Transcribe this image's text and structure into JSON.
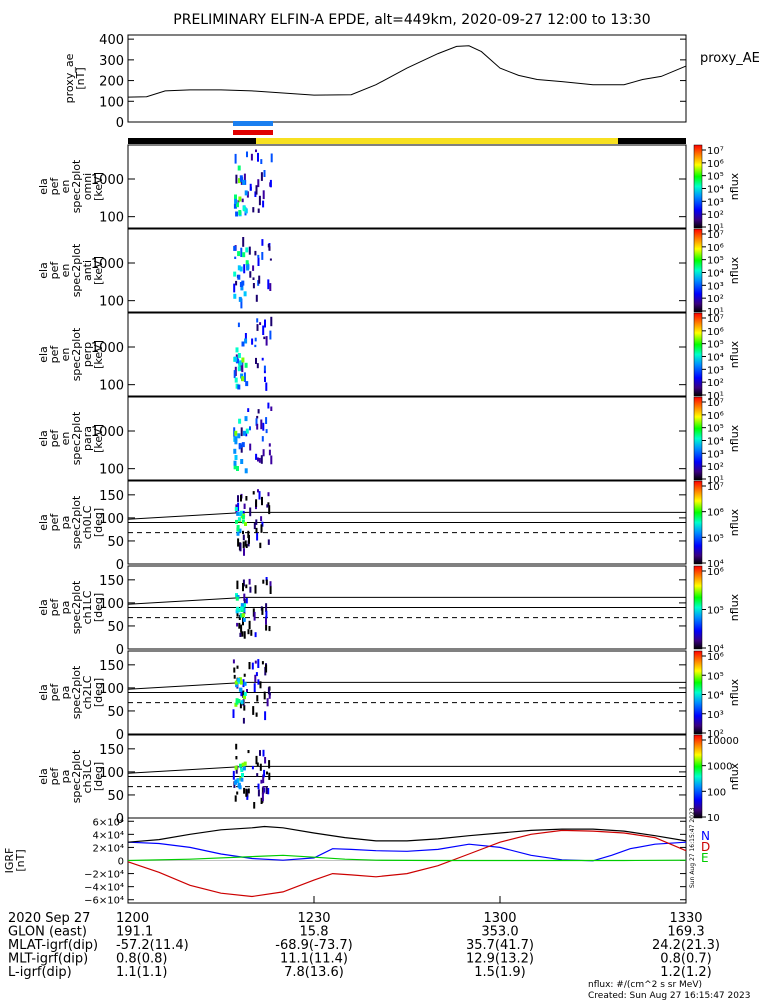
{
  "title": "PRELIMINARY ELFIN-A EPDE, alt=449km, 2020-09-27 12:00 to 13:30",
  "chart_data": [
    {
      "type": "line",
      "id": "proxy_ae",
      "ylabel": [
        "proxy_ae",
        "[nT]"
      ],
      "legend": "proxy_AE",
      "yticks": [
        "0",
        "100",
        "200",
        "300",
        "400"
      ],
      "ylim": [
        0,
        420
      ],
      "xlim": [
        0,
        90
      ],
      "x": [
        0,
        3,
        6,
        10,
        15,
        20,
        25,
        30,
        36,
        40,
        45,
        50,
        53,
        55,
        57,
        60,
        63,
        66,
        70,
        75,
        80,
        83,
        86,
        90
      ],
      "y": [
        120,
        122,
        150,
        155,
        155,
        150,
        140,
        130,
        132,
        180,
        260,
        330,
        365,
        368,
        340,
        260,
        225,
        205,
        195,
        180,
        180,
        205,
        220,
        270
      ]
    },
    {
      "type": "heatmap",
      "id": "spec_omni",
      "ylabel": [
        "ela",
        "pef",
        "en",
        "spec2plot",
        "omni",
        "[keV]"
      ],
      "yticks": [
        "100",
        "1000"
      ],
      "colorbar_label": "nflux",
      "colorbar_ticks": [
        "10¹",
        "10²",
        "10³",
        "10⁴",
        "10⁵",
        "10⁶",
        "10⁷"
      ]
    },
    {
      "type": "heatmap",
      "id": "spec_anti",
      "ylabel": [
        "ela",
        "pef",
        "en",
        "spec2plot",
        "anti",
        "[keV]"
      ],
      "yticks": [
        "100",
        "1000"
      ],
      "colorbar_label": "nflux",
      "colorbar_ticks": [
        "10¹",
        "10²",
        "10³",
        "10⁴",
        "10⁵",
        "10⁶",
        "10⁷"
      ]
    },
    {
      "type": "heatmap",
      "id": "spec_perp",
      "ylabel": [
        "ela",
        "pef",
        "en",
        "spec2plot",
        "perp",
        "[keV]"
      ],
      "yticks": [
        "100",
        "1000"
      ],
      "colorbar_label": "nflux",
      "colorbar_ticks": [
        "10¹",
        "10²",
        "10³",
        "10⁴",
        "10⁵",
        "10⁶",
        "10⁷"
      ]
    },
    {
      "type": "heatmap",
      "id": "spec_para",
      "ylabel": [
        "ela",
        "pef",
        "en",
        "spec2plot",
        "para",
        "[keV]"
      ],
      "yticks": [
        "100",
        "1000"
      ],
      "colorbar_label": "nflux",
      "colorbar_ticks": [
        "10¹",
        "10²",
        "10³",
        "10⁴",
        "10⁵",
        "10⁶",
        "10⁷"
      ]
    },
    {
      "type": "heatmap",
      "id": "pa_ch0",
      "ylabel": [
        "ela",
        "pef",
        "pa",
        "spec2plot",
        "ch0LC",
        "[deg]"
      ],
      "yticks": [
        "0",
        "50",
        "100",
        "150"
      ],
      "colorbar_label": "nflux",
      "colorbar_ticks": [
        "10⁴",
        "10⁵",
        "10⁶",
        "10⁷"
      ]
    },
    {
      "type": "heatmap",
      "id": "pa_ch1",
      "ylabel": [
        "ela",
        "pef",
        "pa",
        "spec2plot",
        "ch1LC",
        "[deg]"
      ],
      "yticks": [
        "0",
        "50",
        "100",
        "150"
      ],
      "colorbar_label": "nflux",
      "colorbar_ticks": [
        "10⁴",
        "10⁵",
        "10⁶"
      ]
    },
    {
      "type": "heatmap",
      "id": "pa_ch2",
      "ylabel": [
        "ela",
        "pef",
        "pa",
        "spec2plot",
        "ch2LC",
        "[deg]"
      ],
      "yticks": [
        "0",
        "50",
        "100",
        "150"
      ],
      "colorbar_label": "nflux",
      "colorbar_ticks": [
        "10²",
        "10³",
        "10⁴",
        "10⁵",
        "10⁶"
      ]
    },
    {
      "type": "heatmap",
      "id": "pa_ch3",
      "ylabel": [
        "ela",
        "pef",
        "pa",
        "spec2plot",
        "ch3LC",
        "[deg]"
      ],
      "yticks": [
        "0",
        "50",
        "100",
        "150"
      ],
      "colorbar_label": "nflux",
      "colorbar_ticks": [
        "10",
        "100",
        "1000",
        "10000"
      ]
    },
    {
      "type": "line",
      "id": "igrf",
      "ylabel": [
        "IGRF",
        "[nT]"
      ],
      "yticks": [
        "−6×10⁴",
        "−4×10⁴",
        "−2×10⁴",
        "0",
        "2×10⁴",
        "4×10⁴",
        "6×10⁴"
      ],
      "ylim": [
        -65000,
        65000
      ],
      "xlim": [
        0,
        90
      ],
      "legend": [
        "N",
        "D",
        "E"
      ],
      "annotation": "Sun Aug 27 16:15:47 2023",
      "series": [
        {
          "name": "N",
          "color": "#0000ff",
          "x": [
            0,
            5,
            10,
            15,
            20,
            25,
            30,
            33,
            36,
            40,
            45,
            50,
            55,
            60,
            65,
            70,
            75,
            78,
            81,
            85,
            90
          ],
          "y": [
            28000,
            26000,
            20000,
            10000,
            3000,
            500,
            4000,
            18000,
            17000,
            15000,
            14000,
            17000,
            25000,
            20000,
            8000,
            1000,
            -500,
            8000,
            18000,
            25000,
            28000
          ]
        },
        {
          "name": "D",
          "color": "#cc0000",
          "x": [
            0,
            5,
            10,
            15,
            20,
            25,
            30,
            33,
            36,
            40,
            45,
            50,
            55,
            60,
            65,
            70,
            75,
            80,
            85,
            90
          ],
          "y": [
            -2000,
            -18000,
            -38000,
            -50000,
            -55000,
            -48000,
            -30000,
            -20000,
            -22000,
            -25000,
            -20000,
            -8000,
            10000,
            28000,
            40000,
            46000,
            45000,
            42000,
            35000,
            15000
          ]
        },
        {
          "name": "E",
          "color": "#00cc00",
          "x": [
            0,
            10,
            20,
            25,
            30,
            35,
            40,
            50,
            60,
            70,
            80,
            90
          ],
          "y": [
            0,
            2000,
            6000,
            8000,
            5000,
            2000,
            500,
            0,
            0,
            0,
            0,
            500
          ]
        },
        {
          "name": "total",
          "color": "#000000",
          "x": [
            0,
            5,
            10,
            15,
            20,
            22,
            25,
            30,
            35,
            40,
            45,
            50,
            55,
            60,
            65,
            70,
            75,
            80,
            85,
            90
          ],
          "y": [
            28000,
            32000,
            40000,
            47000,
            50000,
            52000,
            50000,
            42000,
            35000,
            30000,
            30000,
            33000,
            38000,
            42000,
            46000,
            48000,
            48000,
            45000,
            38000,
            30000
          ]
        }
      ]
    }
  ],
  "time_axis": {
    "rows": [
      {
        "label": "2020 Sep 27",
        "values": [
          "1200",
          "1230",
          "1300",
          "1330"
        ]
      },
      {
        "label": "GLON (east)",
        "values": [
          "191.1",
          "15.8",
          "353.0",
          "169.3"
        ]
      },
      {
        "label": "MLAT-igrf(dip)",
        "values": [
          "-57.2(11.4)",
          "-68.9(-73.7)",
          "35.7(41.7)",
          "24.2(21.3)"
        ]
      },
      {
        "label": "MLT-igrf(dip)",
        "values": [
          "0.8(0.8)",
          "11.1(11.4)",
          "12.9(13.2)",
          "0.8(0.7)"
        ]
      },
      {
        "label": "L-igrf(dip)",
        "values": [
          "1.1(1.1)",
          "7.8(13.6)",
          "1.5(1.9)",
          "1.2(1.2)"
        ]
      }
    ]
  },
  "footer": {
    "units": "nflux: #/(cm^2 s sr MeV)",
    "created": "Created: Sun Aug 27 16:15:47 2023"
  }
}
